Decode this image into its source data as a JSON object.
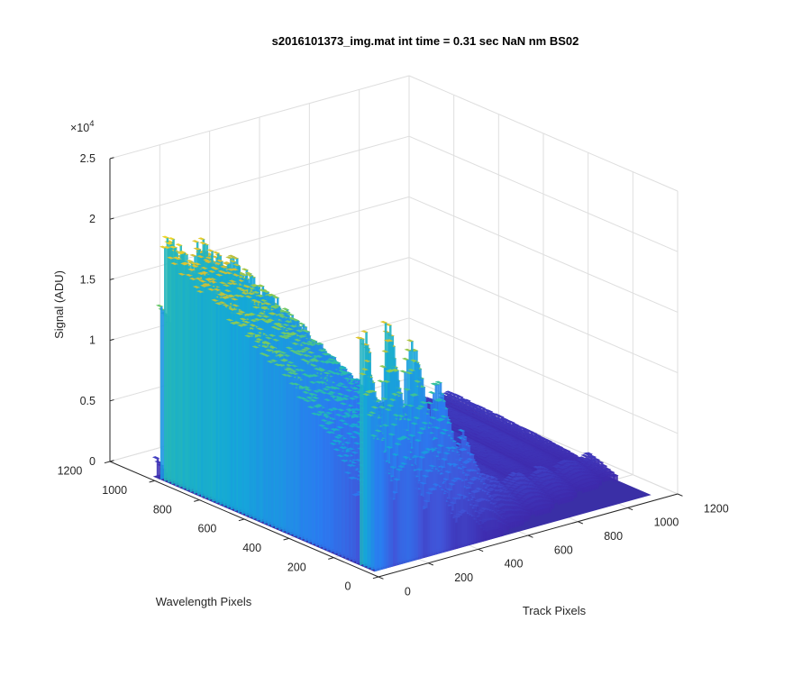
{
  "chart_data": {
    "type": "surface",
    "title": "s2016101373_img.mat int time = 0.31 sec  NaN nm BS02",
    "xlabel": "Track Pixels",
    "ylabel": "Wavelength Pixels",
    "zlabel": "Signal (ADU)",
    "z_exponent": "×10",
    "z_exponent_power": "4",
    "x_ticks": [
      "0",
      "200",
      "400",
      "600",
      "800",
      "1000",
      "1200"
    ],
    "y_ticks": [
      "0",
      "200",
      "400",
      "600",
      "800",
      "1000",
      "1200"
    ],
    "z_ticks": [
      "0",
      "0.5",
      "1",
      "1.5",
      "2",
      "2.5"
    ],
    "x_range": [
      0,
      1200
    ],
    "y_range": [
      0,
      1200
    ],
    "z_range": [
      0,
      25000
    ],
    "grid": true,
    "colormap": "parula",
    "colormap_stops": [
      "#3e26a8",
      "#4154d8",
      "#2b7bf0",
      "#14a8d8",
      "#2ec0a4",
      "#81cc59",
      "#d6bd33",
      "#f9e122"
    ],
    "approx_peak_profile": {
      "description_units": "track pixel vs peak signal (ADU) of each band",
      "track_pixels": [
        60,
        180,
        280,
        360,
        430,
        490,
        560,
        640,
        740,
        860,
        960
      ],
      "peak_signal": [
        20500,
        19500,
        17500,
        15500,
        12000,
        9000,
        6000,
        3000,
        2500,
        2000,
        1500
      ]
    }
  }
}
